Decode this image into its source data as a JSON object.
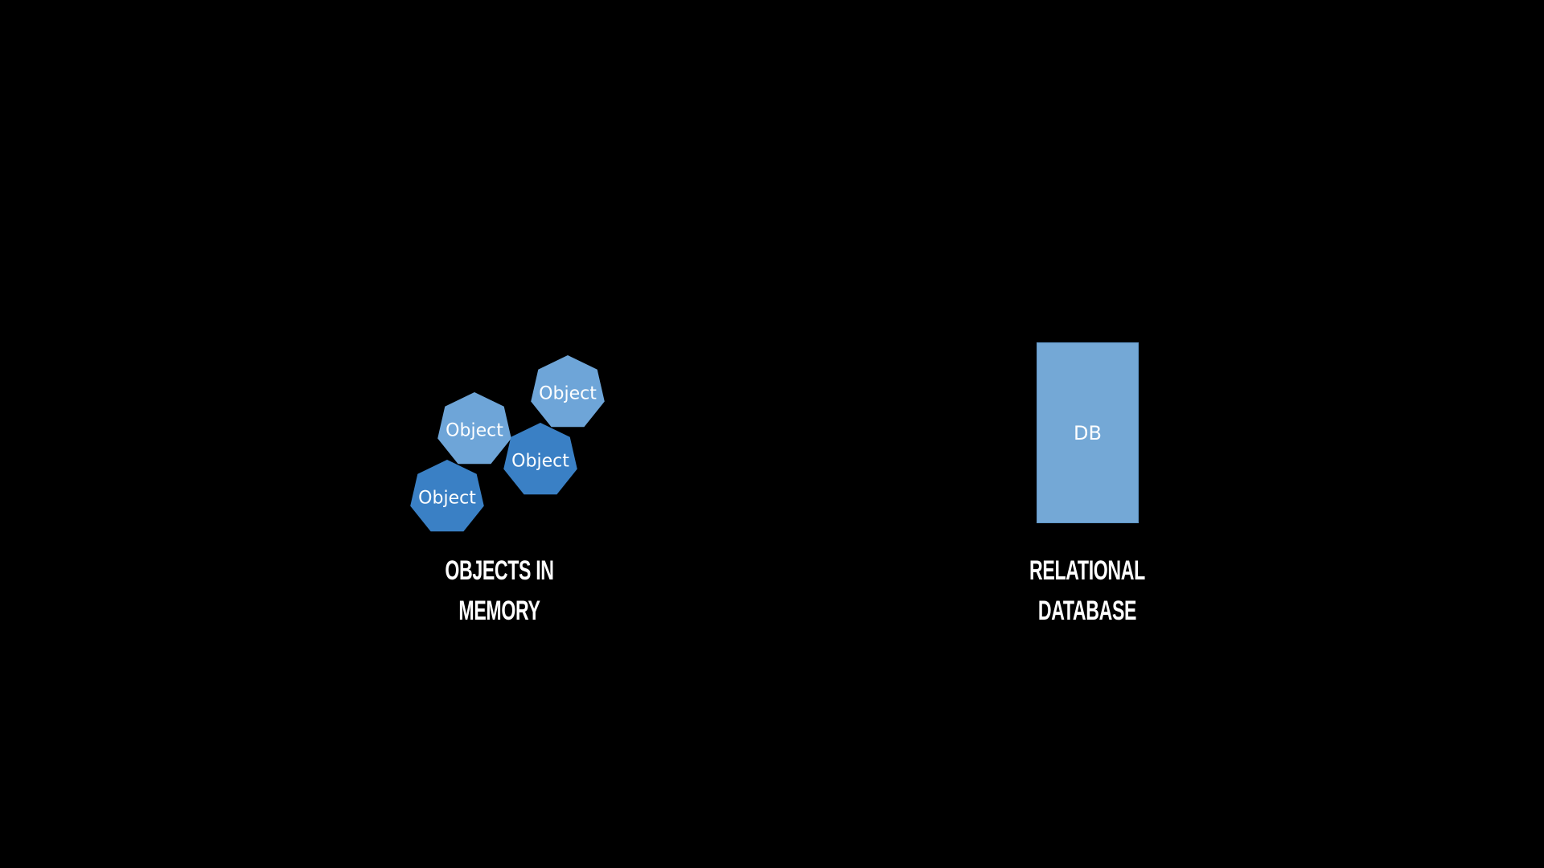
{
  "objects": {
    "items": [
      {
        "label": "Object",
        "color": "#6ea5d8"
      },
      {
        "label": "Object",
        "color": "#6ea5d8"
      },
      {
        "label": "Object",
        "color": "#3a80c5"
      },
      {
        "label": "Object",
        "color": "#3a80c5"
      }
    ],
    "caption_line1": "OBJECTS IN",
    "caption_line2": "MEMORY"
  },
  "database": {
    "label": "DB",
    "color": "#74a8d6",
    "caption_line1": "RELATIONAL",
    "caption_line2": "DATABASE"
  },
  "colors": {
    "background": "#000000",
    "text": "#ffffff"
  }
}
